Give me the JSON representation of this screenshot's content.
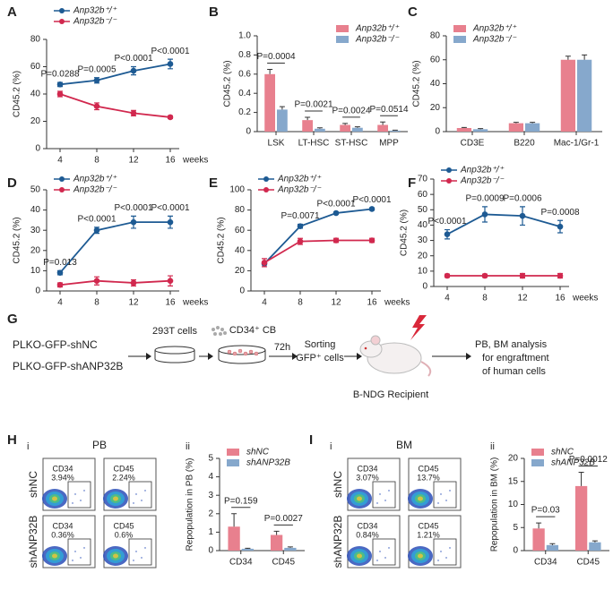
{
  "chart_data": [
    {
      "type": "line",
      "panel_label": "A",
      "y_label": "CD45.2 (%)",
      "x_label": "weeks",
      "categories": [
        "4",
        "8",
        "12",
        "16"
      ],
      "ylim": [
        0,
        80
      ],
      "yticks": [
        0,
        20,
        40,
        60,
        80
      ],
      "legend": "upper left",
      "series": [
        {
          "name": "Anp32b⁺/⁺",
          "color": "#1d5a93",
          "values": [
            47,
            50,
            57,
            62
          ],
          "errors": [
            1.5,
            2,
            3,
            3.5
          ]
        },
        {
          "name": "Anp32b⁻/⁻",
          "color": "#d1284e",
          "values": [
            40,
            31,
            26,
            23
          ],
          "errors": [
            2,
            2.5,
            2,
            1
          ]
        }
      ],
      "p_values": [
        "P=0.0288",
        "P=0.0005",
        "P<0.0001",
        "P<0.0001"
      ]
    },
    {
      "type": "bar",
      "panel_label": "B",
      "y_label": "CD45.2 (%)",
      "categories": [
        "LSK",
        "LT-HSC",
        "ST-HSC",
        "MPP"
      ],
      "ylim": [
        0,
        1
      ],
      "yticks": [
        0,
        0.2,
        0.4,
        0.6,
        0.8,
        {
          "value": 1,
          "label": "1.0"
        }
      ],
      "legend": "upper right",
      "series": [
        {
          "name": "Anp32b⁺/⁺",
          "color": "#e8808e",
          "values": [
            0.6,
            0.12,
            0.07,
            0.07
          ],
          "errors": [
            0.05,
            0.03,
            0.015,
            0.03
          ]
        },
        {
          "name": "Anp32b⁻/⁻",
          "color": "#86a8cc",
          "values": [
            0.23,
            0.03,
            0.04,
            0.01
          ],
          "errors": [
            0.03,
            0.01,
            0.01,
            0.005
          ]
        }
      ],
      "p_values": [
        "P=0.0004",
        "P=0.0021",
        "P=0.0024",
        "P=0.0514"
      ]
    },
    {
      "type": "bar",
      "panel_label": "C",
      "y_label": "CD45.2 (%)",
      "categories": [
        "CD3E",
        "B220",
        "Mac-1/Gr-1"
      ],
      "ylim": [
        0,
        80
      ],
      "yticks": [
        0,
        20,
        40,
        60,
        80
      ],
      "legend": "upper left",
      "series": [
        {
          "name": "Anp32b⁺/⁺",
          "color": "#e8808e",
          "values": [
            3,
            7,
            60
          ],
          "errors": [
            0.5,
            0.8,
            3
          ]
        },
        {
          "name": "Anp32b⁻/⁻",
          "color": "#86a8cc",
          "values": [
            2,
            7,
            60
          ],
          "errors": [
            0.5,
            0.8,
            4
          ]
        }
      ]
    },
    {
      "type": "line",
      "panel_label": "D",
      "y_label": "CD45.2 (%)",
      "x_label": "weeks",
      "categories": [
        "4",
        "8",
        "12",
        "16"
      ],
      "ylim": [
        0,
        50
      ],
      "yticks": [
        0,
        10,
        20,
        30,
        40,
        50
      ],
      "legend": "upper left",
      "series": [
        {
          "name": "Anp32b⁺/⁺",
          "color": "#1d5a93",
          "values": [
            9,
            30,
            34,
            34
          ],
          "errors": [
            1,
            1.5,
            3,
            3
          ]
        },
        {
          "name": "Anp32b⁻/⁻",
          "color": "#d1284e",
          "values": [
            3,
            5,
            4,
            5
          ],
          "errors": [
            1,
            2,
            1.5,
            2.5
          ]
        }
      ],
      "p_values": [
        "P=0.013",
        "P<0.0001",
        "P<0.0001",
        "P<0.0001"
      ]
    },
    {
      "type": "line",
      "panel_label": "E",
      "y_label": "CD45.2 (%)",
      "x_label": "weeks",
      "categories": [
        "4",
        "8",
        "12",
        "16"
      ],
      "ylim": [
        0,
        100
      ],
      "yticks": [
        0,
        20,
        40,
        60,
        80,
        100
      ],
      "legend": "upper left",
      "series": [
        {
          "name": "Anp32b⁺/⁺",
          "color": "#1d5a93",
          "values": [
            27,
            64,
            77,
            81
          ],
          "errors": [
            1,
            2,
            1,
            1
          ]
        },
        {
          "name": "Anp32b⁻/⁻",
          "color": "#d1284e",
          "values": [
            28,
            49,
            50,
            50
          ],
          "errors": [
            4,
            3,
            2,
            2
          ]
        }
      ],
      "p_values": [
        null,
        "P=0.0071",
        "P<0.0001",
        "P<0.0001"
      ]
    },
    {
      "type": "line",
      "panel_label": "F",
      "y_label": "CD45.2 (%)",
      "x_label": "weeks",
      "categories": [
        "4",
        "8",
        "12",
        "16"
      ],
      "ylim": [
        0,
        70
      ],
      "yticks": [
        0,
        10,
        20,
        30,
        40,
        50,
        60,
        70
      ],
      "legend": "upper left",
      "series": [
        {
          "name": "Anp32b⁺/⁺",
          "color": "#1d5a93",
          "values": [
            34,
            47,
            46,
            39
          ],
          "errors": [
            3,
            5,
            6,
            4
          ]
        },
        {
          "name": "Anp32b⁻/⁻",
          "color": "#d1284e",
          "values": [
            7,
            7,
            7,
            7
          ],
          "errors": [
            1,
            1,
            1.5,
            1.5
          ]
        }
      ],
      "p_values": [
        "P<0.0001",
        "P=0.0009",
        "P=0.0006",
        "P=0.0008"
      ]
    },
    {
      "type": "bar",
      "panel_label": "ii",
      "y_label": "Repopulation in PB (%)",
      "categories": [
        "CD34",
        "CD45"
      ],
      "ylim": [
        0,
        5
      ],
      "yticks": [
        0,
        1,
        2,
        3,
        4,
        5
      ],
      "legend": "upper left",
      "series": [
        {
          "name": "shNC",
          "color": "#e8808e",
          "values": [
            1.3,
            0.85
          ],
          "errors": [
            0.7,
            0.2
          ]
        },
        {
          "name": "shANP32B",
          "color": "#86a8cc",
          "values": [
            0.1,
            0.15
          ],
          "errors": [
            0.03,
            0.05
          ]
        }
      ],
      "p_values": [
        "P=0.159",
        "P=0.0027"
      ]
    },
    {
      "type": "bar",
      "panel_label": "ii",
      "y_label": "Repopulation in BM (%)",
      "categories": [
        "CD34",
        "CD45"
      ],
      "ylim": [
        0,
        20
      ],
      "yticks": [
        0,
        5,
        10,
        15,
        20
      ],
      "legend": "upper left",
      "series": [
        {
          "name": "shNC",
          "color": "#e8808e",
          "values": [
            4.8,
            14
          ],
          "errors": [
            1.2,
            3
          ]
        },
        {
          "name": "shANP32B",
          "color": "#86a8cc",
          "values": [
            1.2,
            1.8
          ],
          "errors": [
            0.3,
            0.3
          ]
        }
      ],
      "p_values": [
        "P=0.03",
        "P=0.0012"
      ]
    }
  ],
  "diagram": {
    "panel_label": "G",
    "constructs": [
      "PLKO-GFP-shNC",
      "PLKO-GFP-shANP32B"
    ],
    "cells": "293T cells",
    "target": "CD34⁺ CB",
    "time": "72h",
    "sorting": [
      "Sorting",
      "GFP⁺ cells"
    ],
    "recipient": "B-NDG Recipient",
    "analysis": [
      "PB, BM analysis",
      "for engraftment",
      "of human cells"
    ]
  },
  "flow_panels": [
    {
      "panel_label": "H",
      "sub_label": "i",
      "tissue": "PB",
      "rows": [
        "shNC",
        "shANP32B"
      ],
      "gates": [
        [
          {
            "marker": "CD34",
            "percent": "3.94%"
          },
          {
            "marker": "CD45",
            "percent": "2.24%"
          }
        ],
        [
          {
            "marker": "CD34",
            "percent": "0.36%"
          },
          {
            "marker": "CD45",
            "percent": "0.6%"
          }
        ]
      ]
    },
    {
      "panel_label": "I",
      "sub_label": "i",
      "tissue": "BM",
      "rows": [
        "shNC",
        "shANP32B"
      ],
      "gates": [
        [
          {
            "marker": "CD34",
            "percent": "3.07%"
          },
          {
            "marker": "CD45",
            "percent": "13.7%"
          }
        ],
        [
          {
            "marker": "CD34",
            "percent": "0.84%"
          },
          {
            "marker": "CD45",
            "percent": "1.21%"
          }
        ]
      ]
    }
  ]
}
